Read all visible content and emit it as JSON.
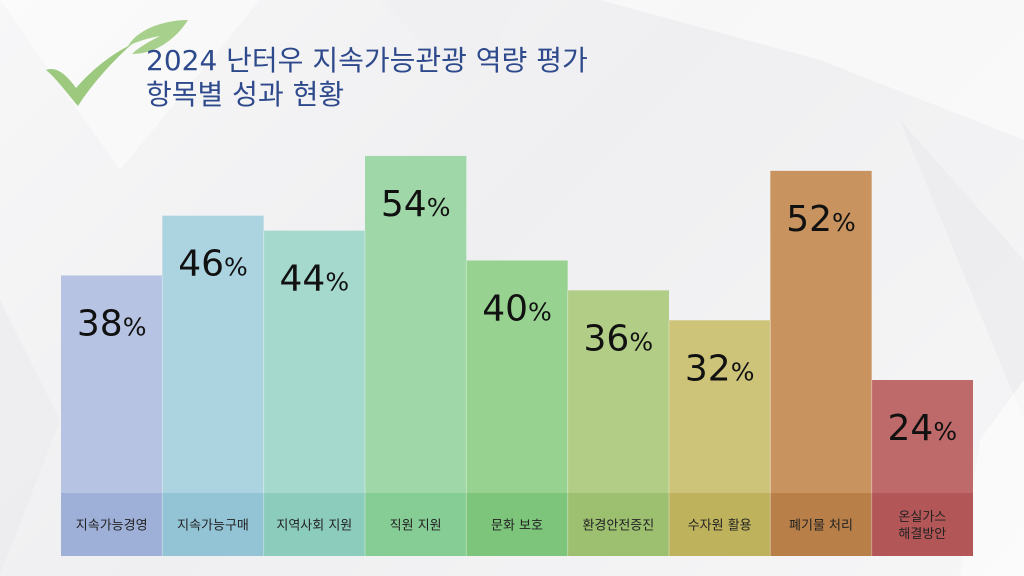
{
  "title": {
    "line1": "2024 난터우 지속가능관광 역량 평가",
    "line2": "항목별 성과 현황"
  },
  "colors": {
    "title": "#2f4a8c",
    "logo_leaf": "#a8d08d",
    "logo_check": "#9cc97e"
  },
  "chart_data": {
    "type": "bar",
    "categories": [
      [
        "지속가능경영"
      ],
      [
        "지속가능구매"
      ],
      [
        "지역사회 지원"
      ],
      [
        "직원 지원"
      ],
      [
        "문화 보호"
      ],
      [
        "환경안전증진"
      ],
      [
        "수자원 활용"
      ],
      [
        "폐기물 처리"
      ],
      [
        "온실가스",
        "해결방안"
      ]
    ],
    "values": [
      38,
      46,
      44,
      54,
      40,
      36,
      32,
      52,
      24
    ],
    "value_suffix": "%",
    "ylim": [
      0,
      60
    ],
    "grid": false,
    "legend": "none",
    "bar_colors": [
      "#b7c3e2",
      "#acd3e0",
      "#a6d9cd",
      "#9fd7a8",
      "#97d291",
      "#b2cd86",
      "#cdc47a",
      "#c9935f",
      "#bf6a6a"
    ],
    "label_band_colors": [
      "#9eb0d8",
      "#93c4d6",
      "#8cccbd",
      "#86cc95",
      "#7ec57c",
      "#9cbf70",
      "#bfb25d",
      "#b87f49",
      "#b25657"
    ]
  }
}
